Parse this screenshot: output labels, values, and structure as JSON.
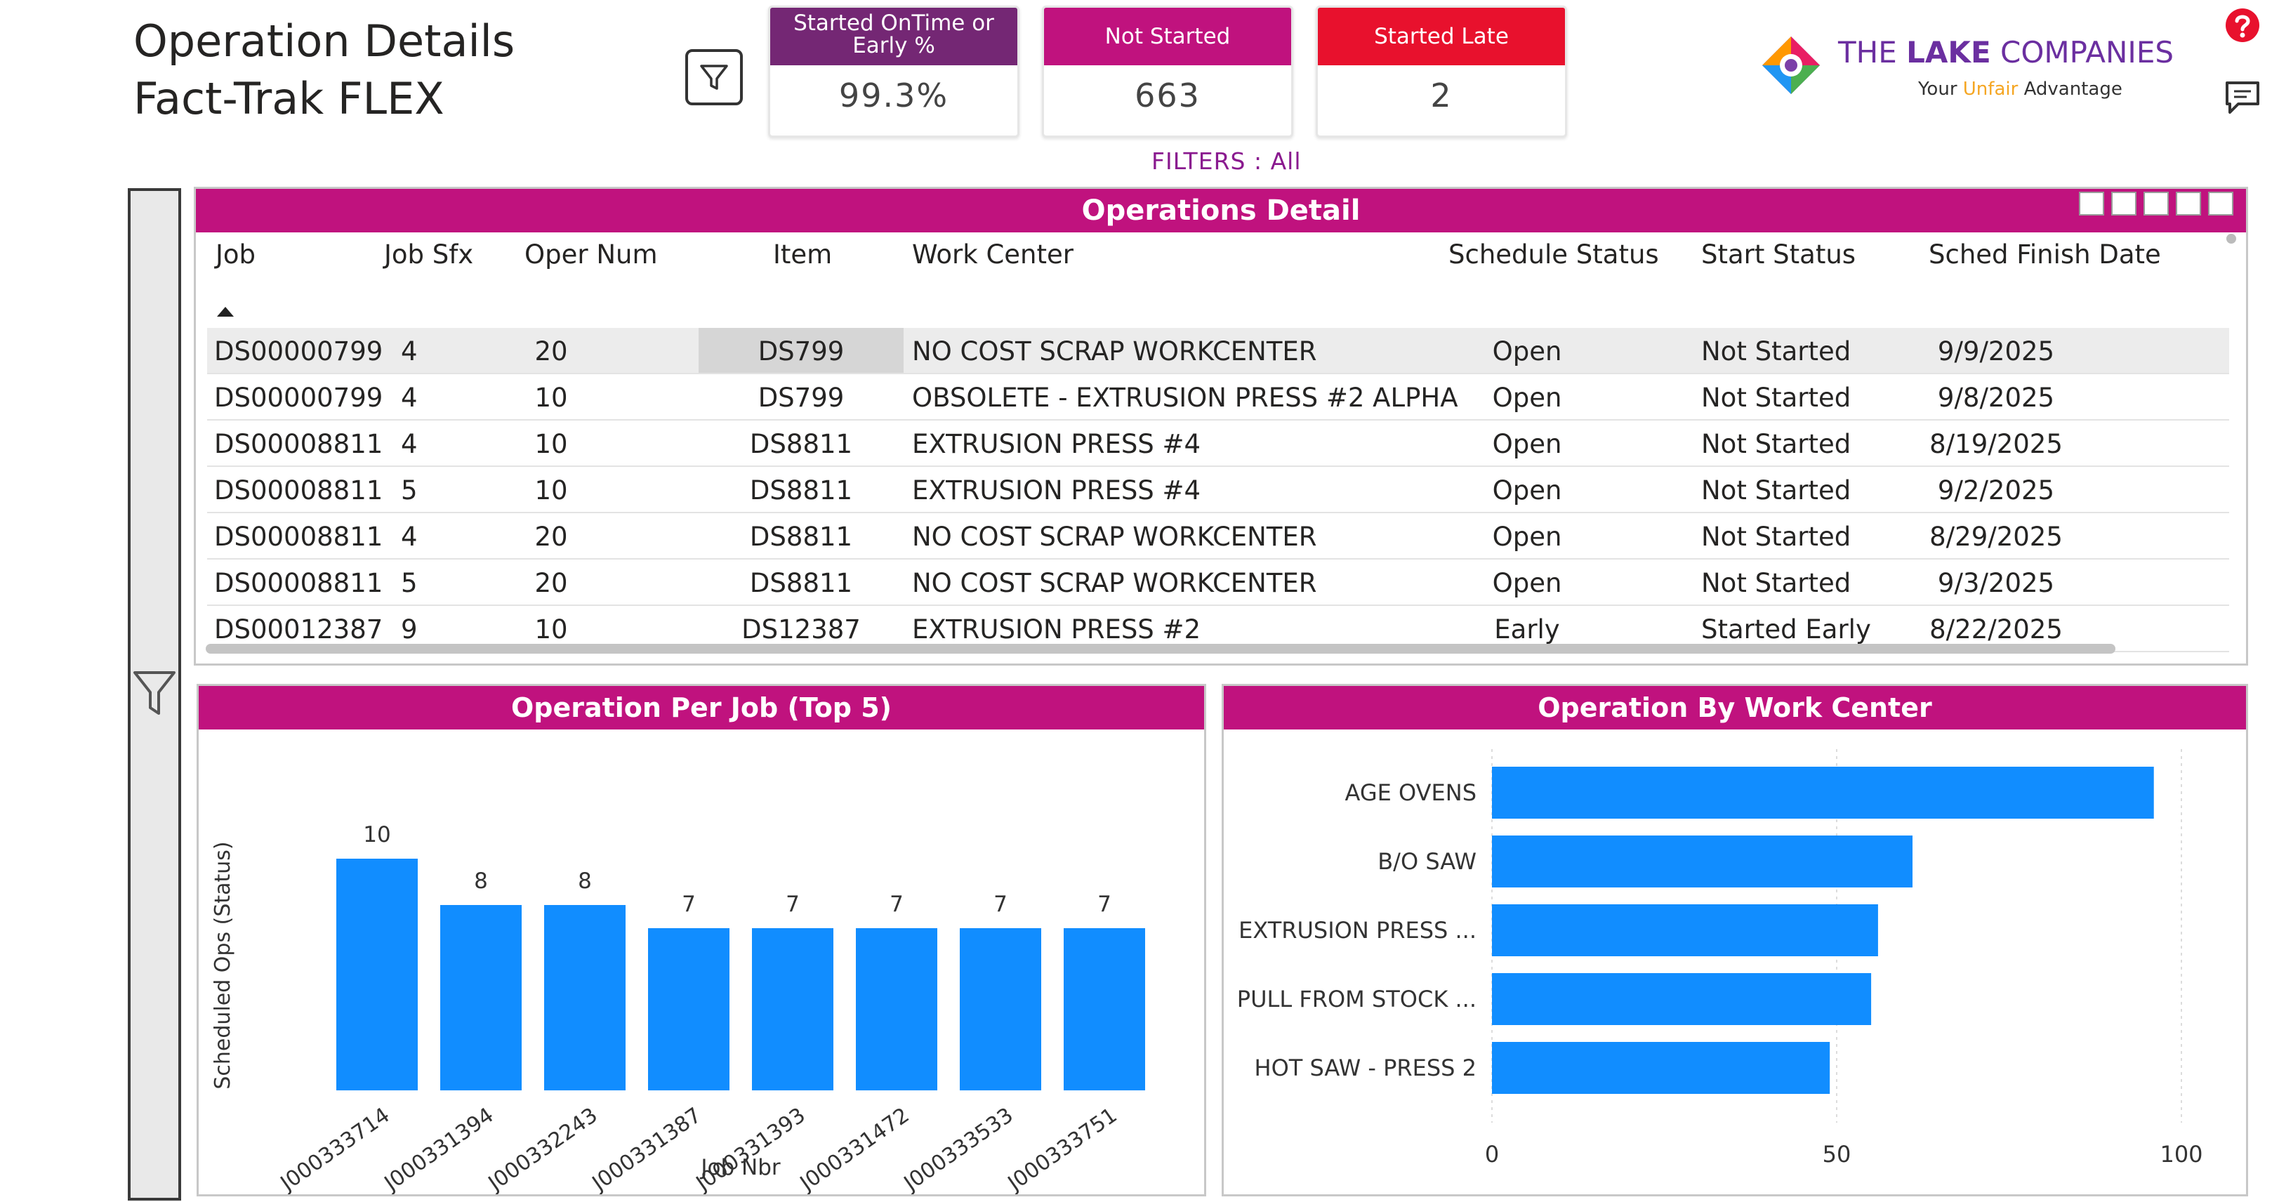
{
  "header": {
    "title_line1": "Operation Details",
    "title_line2": "Fact-Trak FLEX"
  },
  "kpis": [
    {
      "label": "Started OnTime or Early %",
      "value": "99.3%",
      "color": "#742774"
    },
    {
      "label": "Not Started",
      "value": "663",
      "color": "#c0127e"
    },
    {
      "label": "Started Late",
      "value": "2",
      "color": "#e8112d"
    }
  ],
  "filters": {
    "label": "FILTERS",
    "separator": ":",
    "value": "All"
  },
  "logo": {
    "the": "THE",
    "lake": "LAKE",
    "companies": "COMPANIES",
    "tag_prefix": "Your",
    "tag_accent": "Unfair",
    "tag_suffix": "Advantage"
  },
  "table": {
    "title": "Operations Detail",
    "columns": [
      "Job",
      "Job Sfx",
      "Oper Num",
      "Item",
      "Work Center",
      "Schedule Status",
      "Start Status",
      "Sched Finish Date"
    ],
    "rows": [
      [
        "DS00000799",
        "4",
        "20",
        "DS799",
        "NO COST SCRAP WORKCENTER",
        "Open",
        "Not Started",
        "9/9/2025"
      ],
      [
        "DS00000799",
        "4",
        "10",
        "DS799",
        "OBSOLETE - EXTRUSION PRESS #2 ALPHA",
        "Open",
        "Not Started",
        "9/8/2025"
      ],
      [
        "DS00008811",
        "4",
        "10",
        "DS8811",
        "EXTRUSION PRESS #4",
        "Open",
        "Not Started",
        "8/19/2025"
      ],
      [
        "DS00008811",
        "5",
        "10",
        "DS8811",
        "EXTRUSION PRESS #4",
        "Open",
        "Not Started",
        "9/2/2025"
      ],
      [
        "DS00008811",
        "4",
        "20",
        "DS8811",
        "NO COST SCRAP WORKCENTER",
        "Open",
        "Not Started",
        "8/29/2025"
      ],
      [
        "DS00008811",
        "5",
        "20",
        "DS8811",
        "NO COST SCRAP WORKCENTER",
        "Open",
        "Not Started",
        "9/3/2025"
      ],
      [
        "DS00012387",
        "9",
        "10",
        "DS12387",
        "EXTRUSION PRESS #2",
        "Early",
        "Started Early",
        "8/22/2025"
      ]
    ]
  },
  "chart_data": [
    {
      "type": "bar",
      "title": "Operation Per Job (Top 5)",
      "xlabel": "Job Nbr",
      "ylabel": "Scheduled Ops (Status)",
      "categories": [
        "J000333714",
        "J000331394",
        "J000332243",
        "J000331387",
        "J000331393",
        "J000331472",
        "J000333533",
        "J000333751"
      ],
      "values": [
        10,
        8,
        8,
        7,
        7,
        7,
        7,
        7
      ],
      "data_labels": true,
      "color": "#118dff"
    },
    {
      "type": "bar",
      "orientation": "horizontal",
      "title": "Operation By Work Center",
      "categories": [
        "AGE OVENS",
        "B/O SAW",
        "EXTRUSION PRESS ...",
        "PULL FROM STOCK ...",
        "HOT SAW - PRESS 2"
      ],
      "values": [
        96,
        61,
        56,
        55,
        49
      ],
      "xlim": [
        0,
        100
      ],
      "xticks": [
        "0",
        "50",
        "100"
      ],
      "grid": true,
      "color": "#118dff"
    }
  ]
}
